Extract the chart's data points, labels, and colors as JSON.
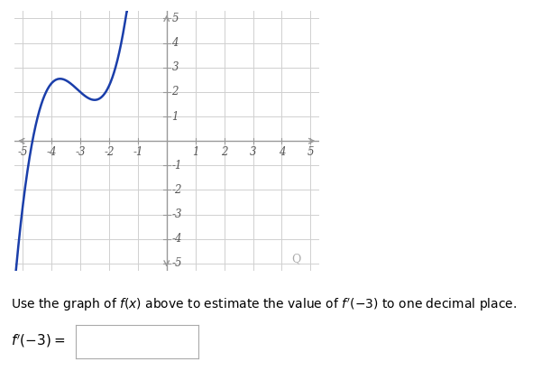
{
  "xlim": [
    -5.3,
    5.3
  ],
  "ylim": [
    -5.3,
    5.3
  ],
  "xticks": [
    -5,
    -4,
    -3,
    -2,
    -1,
    1,
    2,
    3,
    4,
    5
  ],
  "yticks": [
    -5,
    -4,
    -3,
    -2,
    -1,
    1,
    2,
    3,
    4,
    5
  ],
  "xtick_labels": [
    "-5",
    "-4",
    "-3",
    "-2",
    "-1",
    "1",
    "2",
    "3",
    "4",
    "5"
  ],
  "ytick_labels": [
    "-5",
    "-4",
    "-3",
    "-2",
    "-1",
    "1",
    "2",
    "3",
    "4",
    "5"
  ],
  "curve_color": "#1a3eaa",
  "curve_linewidth": 1.8,
  "grid_color": "#d0d0d0",
  "axis_color": "#999999",
  "background_color": "#ffffff",
  "text_line1": "Use the graph of $f(x)$ above to estimate the value of $f'(-3)$ to one decimal place.",
  "cubic_a": 1,
  "cubic_b": 9.3,
  "cubic_c": 27.75,
  "cubic_d": 28.55,
  "figsize": [
    6.21,
    4.11
  ],
  "dpi": 100
}
